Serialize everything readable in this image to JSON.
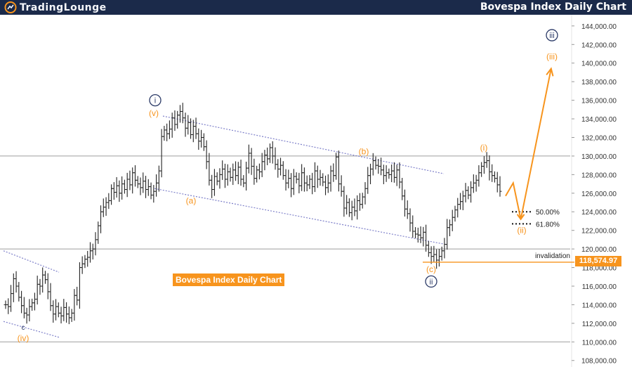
{
  "header": {
    "logo_text": "TradingLounge",
    "title": "Bovespa Index Daily Chart"
  },
  "caption": "Bovespa Index Daily Chart",
  "colors": {
    "header_bg": "#1b2a4a",
    "accent": "#f7941d",
    "navy": "#2b3a67",
    "channel": "#7d7fc9"
  },
  "chart_data": {
    "type": "candlestick",
    "yaxis": {
      "ticks": [
        "144,000.00",
        "142,000.00",
        "140,000.00",
        "138,000.00",
        "136,000.00",
        "134,000.00",
        "132,000.00",
        "130,000.00",
        "128,000.00",
        "126,000.00",
        "124,000.00",
        "122,000.00",
        "120,000.00",
        "118,000.00",
        "116,000.00",
        "114,000.00",
        "112,000.00",
        "110,000.00",
        "108,000.00"
      ],
      "tick_values": [
        144000,
        142000,
        140000,
        138000,
        136000,
        134000,
        132000,
        130000,
        128000,
        126000,
        124000,
        122000,
        120000,
        118000,
        116000,
        114000,
        112000,
        110000,
        108000
      ],
      "range": [
        107300,
        145200
      ]
    },
    "bars": [
      114000,
      113800,
      115200,
      116800,
      116000,
      114800,
      113900,
      113100,
      112900,
      113800,
      114200,
      114600,
      116200,
      116000,
      117200,
      116700,
      115400,
      113900,
      113000,
      113800,
      113100,
      112800,
      113700,
      113000,
      112600,
      113100,
      115000,
      114500,
      118000,
      118400,
      118900,
      119100,
      119800,
      120000,
      121000,
      122500,
      124000,
      124500,
      125000,
      125200,
      126500,
      126100,
      126800,
      126000,
      127000,
      126400,
      127500,
      126900,
      128200,
      127400,
      127000,
      126600,
      127300,
      126400,
      126700,
      125800,
      126200,
      127100,
      128400,
      132100,
      132800,
      132400,
      132900,
      134100,
      133400,
      134400,
      134800,
      134100,
      133000,
      133600,
      132300,
      133200,
      132400,
      131600,
      132000,
      131000,
      129400,
      127400,
      126400,
      127800,
      127300,
      128000,
      128600,
      127500,
      128300,
      127700,
      128500,
      127900,
      128800,
      127500,
      127100,
      128700,
      130300,
      128900,
      127600,
      128500,
      128300,
      129400,
      130100,
      129700,
      130900,
      130000,
      129100,
      128600,
      129000,
      127900,
      127100,
      127600,
      126500,
      127800,
      127500,
      126800,
      128200,
      127100,
      126900,
      127500,
      126700,
      128400,
      127500,
      127700,
      127200,
      126600,
      127100,
      128400,
      127900,
      129900,
      127000,
      126200,
      124400,
      125000,
      123900,
      124500,
      124100,
      125200,
      124800,
      125600,
      126500,
      127900,
      128600,
      129500,
      129000,
      128900,
      128500,
      127900,
      128200,
      128000,
      128400,
      127700,
      128500,
      127200,
      125700,
      124300,
      123800,
      122800,
      121900,
      121600,
      121500,
      121200,
      121800,
      120400,
      119600,
      119200,
      119400,
      118800,
      119200,
      119800,
      120500,
      122300,
      122600,
      123400,
      124200,
      124800,
      125100,
      125700,
      126300,
      125800,
      126600,
      127100,
      127400,
      128200,
      128900,
      129300,
      129500,
      128300,
      127900,
      127600,
      126900,
      126200
    ],
    "reference_lines": [
      130000,
      120000,
      110000
    ],
    "fib_levels": [
      {
        "label": "50.00%",
        "value": 124000
      },
      {
        "label": "61.80%",
        "value": 122700
      }
    ],
    "invalidation": {
      "label": "invalidation",
      "value": 118574.97,
      "value_label": "118,574.97"
    },
    "wave_labels": [
      {
        "text": "i",
        "style": "circled-navy",
        "y": 136000
      },
      {
        "text": "(v)",
        "style": "orange",
        "y": 134600
      },
      {
        "text": "(a)",
        "style": "orange",
        "y": 125200
      },
      {
        "text": "(b)",
        "style": "orange",
        "y": 130500
      },
      {
        "text": "(c)",
        "style": "orange",
        "y": 117800
      },
      {
        "text": "ii",
        "style": "circled-navy",
        "y": 116500
      },
      {
        "text": "(i)",
        "style": "orange",
        "y": 130900
      },
      {
        "text": "(ii)",
        "style": "orange",
        "y": 122000
      },
      {
        "text": "iii",
        "style": "circled-navy",
        "y": 143000
      },
      {
        "text": "(iii)",
        "style": "orange",
        "y": 140700
      },
      {
        "text": "c",
        "style": "navy-small",
        "y": 111600
      },
      {
        "text": "(iv)",
        "style": "orange",
        "y": 110400
      }
    ],
    "projection": [
      {
        "x_frac": 0.8,
        "y": 125700
      },
      {
        "x_frac": 0.812,
        "y": 127100
      },
      {
        "x_frac": 0.824,
        "y": 123200
      },
      {
        "x_frac": 0.872,
        "y": 139400
      }
    ],
    "channels": [
      {
        "from_y": 134300,
        "to_y": 128100
      },
      {
        "from_y": 126500,
        "to_y": 120500
      },
      {
        "from_y": 119800,
        "to_y": 117500
      },
      {
        "from_y": 112200,
        "to_y": 110500
      }
    ]
  }
}
